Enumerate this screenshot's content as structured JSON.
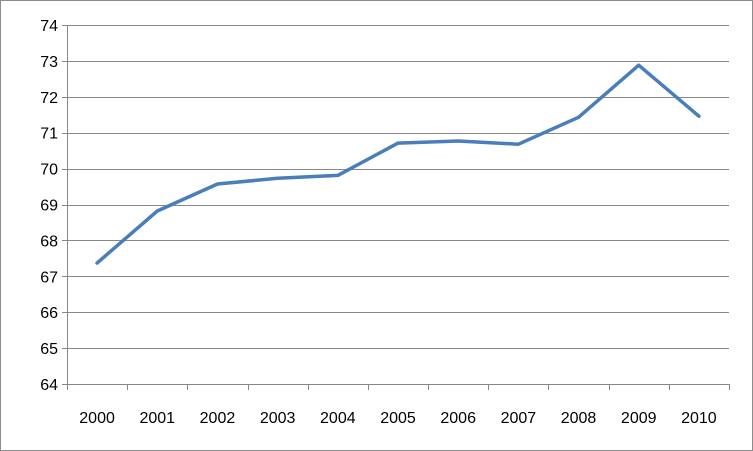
{
  "chart_data": {
    "type": "line",
    "title": "",
    "xlabel": "",
    "ylabel": "",
    "categories": [
      "2000",
      "2001",
      "2002",
      "2003",
      "2004",
      "2005",
      "2006",
      "2007",
      "2008",
      "2009",
      "2010"
    ],
    "series": [
      {
        "values": [
          67.37,
          68.82,
          69.57,
          69.73,
          69.81,
          70.71,
          70.77,
          70.68,
          71.43,
          72.88,
          71.46
        ]
      }
    ],
    "ylim": [
      64,
      74
    ],
    "yticks": [
      "64",
      "65",
      "66",
      "67",
      "68",
      "69",
      "70",
      "71",
      "72",
      "73",
      "74"
    ],
    "grid": "horizontal",
    "legend": "none",
    "colors": {
      "line": "#4a7ebb",
      "grid": "#878787",
      "axis": "#878787",
      "text": "#000000"
    }
  }
}
